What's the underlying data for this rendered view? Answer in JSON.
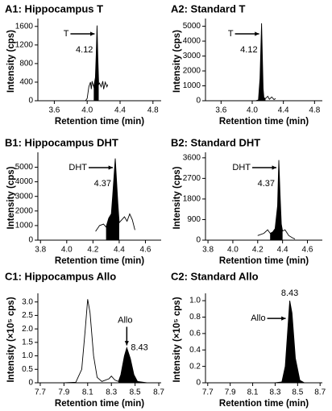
{
  "chart_data": [
    {
      "type": "line",
      "title": "A1: Hippocampus T",
      "xlabel": "Retention time (min)",
      "ylabel": "Intensity (cps)",
      "color": "#000000",
      "xlim": [
        3.4,
        4.9
      ],
      "ylim": [
        0,
        1700
      ],
      "xticks": [
        3.6,
        {
          "value": 4,
          "label": "4.0"
        },
        4.4,
        4.8
      ],
      "yticks": [
        0,
        400,
        800,
        1200,
        1600
      ],
      "x": [
        3.98,
        4.0,
        4.02,
        4.04,
        4.05,
        4.06,
        4.07,
        4.08,
        4.1,
        4.11,
        4.12,
        4.13,
        4.14,
        4.15,
        4.17,
        4.19,
        4.2,
        4.22,
        4.24,
        4.25
      ],
      "values": [
        0,
        50,
        300,
        400,
        250,
        420,
        350,
        300,
        500,
        1000,
        1620,
        900,
        350,
        380,
        300,
        420,
        250,
        400,
        300,
        350
      ],
      "arrow_label": "T",
      "peak_label": 4.12
    },
    {
      "type": "line",
      "title": "A2: Standard T",
      "xlabel": "Retention time (min)",
      "ylabel": "Intensity (cps)",
      "color": "#000000",
      "xlim": [
        3.4,
        4.9
      ],
      "ylim": [
        0,
        5300
      ],
      "xticks": [
        3.6,
        {
          "value": 4,
          "label": "4.0"
        },
        4.4,
        4.8
      ],
      "yticks": [
        0,
        1000,
        2000,
        3000,
        4000,
        5000
      ],
      "x": [
        3.95,
        4.0,
        4.05,
        4.08,
        4.1,
        4.12,
        4.13,
        4.14,
        4.15,
        4.17,
        4.2,
        4.22,
        4.25,
        4.28,
        4.3
      ],
      "values": [
        0,
        0,
        10,
        50,
        1500,
        5200,
        3000,
        800,
        200,
        150,
        300,
        100,
        250,
        80,
        150
      ],
      "arrow_label": "T",
      "peak_label": 4.12
    },
    {
      "type": "line",
      "title": "B1: Hippocampus DHT",
      "xlabel": "Retention time (min)",
      "ylabel": "Intensity (cps)",
      "color": "#000000",
      "xlim": [
        3.78,
        4.72
      ],
      "ylim": [
        0,
        5800
      ],
      "xticks": [
        3.8,
        {
          "value": 4,
          "label": "4.0"
        },
        4.2,
        4.4,
        4.6
      ],
      "yticks": [
        0,
        1000,
        2000,
        3000,
        4000,
        5000
      ],
      "x": [
        4.22,
        4.25,
        4.28,
        4.3,
        4.32,
        4.34,
        4.35,
        4.37,
        4.39,
        4.4,
        4.42,
        4.44,
        4.46,
        4.48,
        4.5,
        4.52
      ],
      "values": [
        600,
        1000,
        1100,
        900,
        1500,
        1800,
        3000,
        5600,
        2500,
        1200,
        1400,
        1600,
        1300,
        1800,
        1400,
        700
      ],
      "arrow_label": "DHT",
      "peak_label": 4.37
    },
    {
      "type": "line",
      "title": "B2: Standard DHT",
      "xlabel": "Retention time (min)",
      "ylabel": "Intensity (cps)",
      "color": "#000000",
      "xlim": [
        3.78,
        4.72
      ],
      "ylim": [
        0,
        3700
      ],
      "xticks": [
        3.8,
        {
          "value": 4,
          "label": "4.0"
        },
        4.2,
        4.4,
        4.6
      ],
      "yticks": [
        0,
        900,
        1800,
        2700,
        3600
      ],
      "x": [
        4.2,
        4.25,
        4.28,
        4.3,
        4.32,
        4.34,
        4.36,
        4.37,
        4.38,
        4.39,
        4.4,
        4.42,
        4.45,
        4.48,
        4.5
      ],
      "values": [
        200,
        300,
        450,
        300,
        350,
        500,
        1500,
        3500,
        2000,
        700,
        400,
        450,
        200,
        100,
        50
      ],
      "arrow_label": "DHT",
      "peak_label": 4.37
    },
    {
      "type": "line",
      "title": "C1: Hippocampus Allo",
      "xlabel": "Retention time (min)",
      "ylabel": "Intensity (×10⁵ cps)",
      "color": "#000000",
      "xlim": [
        7.68,
        8.72
      ],
      "ylim": [
        0,
        3.2
      ],
      "xticks": [
        7.7,
        7.9,
        8.1,
        8.3,
        8.5,
        8.7
      ],
      "yticks": [
        0,
        0.5,
        {
          "value": 1,
          "label": "1.0"
        },
        1.5,
        {
          "value": 2,
          "label": "2.0"
        },
        2.5,
        {
          "value": 3,
          "label": "3.0"
        }
      ],
      "x": [
        7.7,
        7.9,
        8.0,
        8.05,
        8.08,
        8.1,
        8.12,
        8.15,
        8.18,
        8.22,
        8.28,
        8.3,
        8.33,
        8.36,
        8.38,
        8.41,
        8.43,
        8.46,
        8.49,
        8.52,
        8.6,
        8.7
      ],
      "values": [
        0,
        0,
        0.02,
        0.5,
        2.0,
        3.1,
        2.6,
        1.0,
        0.2,
        0.05,
        0.15,
        0.25,
        0.1,
        0.05,
        0.3,
        1.0,
        1.3,
        0.9,
        0.3,
        0.05,
        0,
        0
      ],
      "arrow_label": "Allo",
      "peak_label": 8.43
    },
    {
      "type": "line",
      "title": "C2: Standard Allo",
      "xlabel": "Retention time (min)",
      "ylabel": "Intensity (×10⁵ cps)",
      "color": "#000000",
      "xlim": [
        7.68,
        8.72
      ],
      "ylim": [
        0,
        1.05
      ],
      "xticks": [
        7.7,
        7.9,
        8.1,
        8.3,
        8.5,
        8.7
      ],
      "yticks": [
        0,
        0.2,
        0.4,
        0.6,
        0.8,
        {
          "value": 1,
          "label": "1.0"
        }
      ],
      "x": [
        7.7,
        8.0,
        8.3,
        8.36,
        8.39,
        8.42,
        8.43,
        8.45,
        8.48,
        8.52,
        8.56,
        8.7
      ],
      "values": [
        0,
        0,
        0,
        0.01,
        0.2,
        0.8,
        1.0,
        0.85,
        0.3,
        0.03,
        0,
        0
      ],
      "arrow_label": "Allo",
      "peak_label": 8.43
    }
  ]
}
